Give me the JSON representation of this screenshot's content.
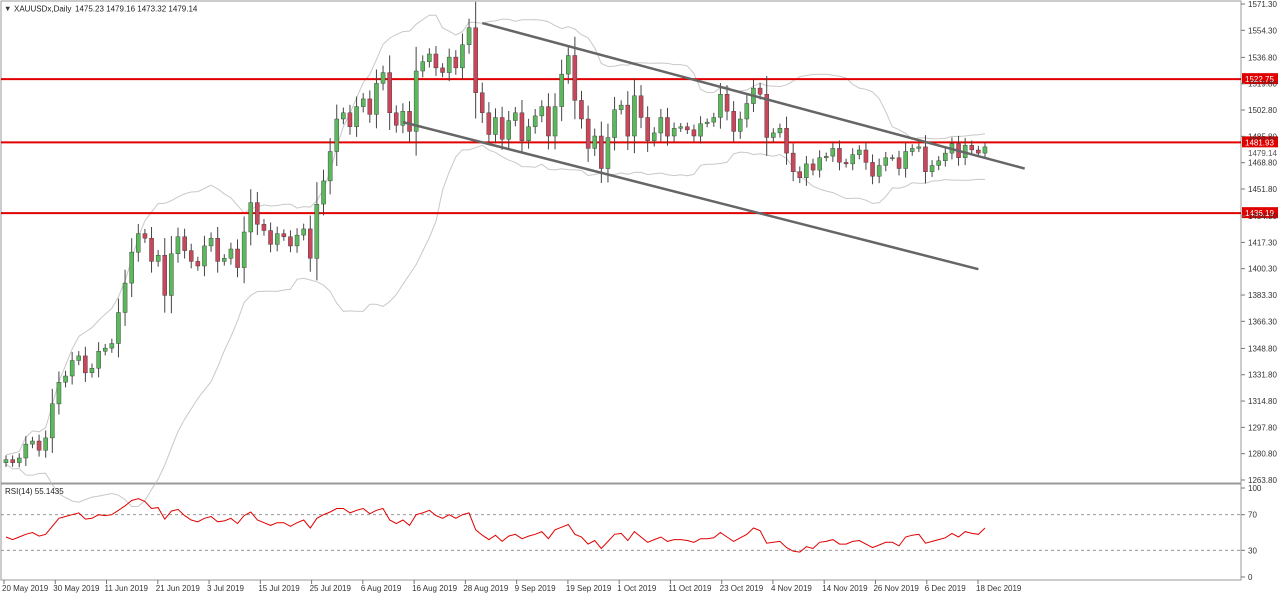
{
  "header": {
    "menu_icon": "triangle-down-icon",
    "symbol": "XAUUSDx,Daily",
    "ohlc": "1475.23 1479.16 1473.32 1479.14"
  },
  "rsi_label": "RSI(14) 55.1435",
  "colors": {
    "bull": "#5cb85c",
    "bear": "#c9475b",
    "level_line": "#e00000",
    "channel_line": "#666666",
    "band_line": "#c8c8c8",
    "rsi_line": "#e00000",
    "grid_border": "#999999"
  },
  "chart_data": [
    {
      "type": "candlestick",
      "symbol": "XAUUSDx",
      "timeframe": "Daily",
      "price_axis_ticks": [
        "1571.30",
        "1554.30",
        "1536.80",
        "1519.80",
        "1502.80",
        "1485.80",
        "1468.80",
        "1451.80",
        "1434.30",
        "1417.30",
        "1400.30",
        "1383.30",
        "1366.30",
        "1348.80",
        "1331.80",
        "1314.80",
        "1297.80",
        "1280.80",
        "1263.80"
      ],
      "ylim": [
        1263.8,
        1571.3
      ],
      "date_axis_ticks": [
        "20 May 2019",
        "30 May 2019",
        "11 Jun 2019",
        "21 Jun 2019",
        "3 Jul 2019",
        "15 Jul 2019",
        "25 Jul 2019",
        "6 Aug 2019",
        "16 Aug 2019",
        "28 Aug 2019",
        "9 Sep 2019",
        "19 Sep 2019",
        "1 Oct 2019",
        "11 Oct 2019",
        "23 Oct 2019",
        "4 Nov 2019",
        "14 Nov 2019",
        "26 Nov 2019",
        "6 Dec 2019",
        "18 Dec 2019"
      ],
      "horizontal_levels": [
        {
          "price": 1522.75,
          "label": "1522.75"
        },
        {
          "price": 1481.93,
          "label": "1481.93"
        },
        {
          "price": 1436.19,
          "label": "1436.19"
        }
      ],
      "current_price_label": "1479.14",
      "channel": {
        "upper": {
          "from": [
            72,
            1559
          ],
          "to": [
            154,
            1465
          ]
        },
        "lower": {
          "from": [
            60,
            1495
          ],
          "to": [
            147,
            1400
          ]
        }
      },
      "candles_close": [
        1277,
        1275,
        1278,
        1287,
        1289,
        1283,
        1291,
        1313,
        1327,
        1331,
        1341,
        1344,
        1333,
        1336,
        1347,
        1349,
        1352,
        1372,
        1391,
        1411,
        1423,
        1420,
        1405,
        1409,
        1383,
        1410,
        1421,
        1412,
        1405,
        1402,
        1415,
        1420,
        1405,
        1407,
        1413,
        1401,
        1424,
        1443,
        1429,
        1425,
        1416,
        1423,
        1421,
        1415,
        1422,
        1426,
        1407,
        1442,
        1457,
        1476,
        1497,
        1501,
        1492,
        1505,
        1510,
        1500,
        1520,
        1527,
        1501,
        1493,
        1502,
        1489,
        1528,
        1534,
        1539,
        1530,
        1527,
        1537,
        1530,
        1545,
        1556,
        1514,
        1501,
        1487,
        1498,
        1484,
        1496,
        1501,
        1483,
        1492,
        1499,
        1505,
        1486,
        1505,
        1526,
        1538,
        1509,
        1497,
        1478,
        1486,
        1465,
        1485,
        1503,
        1506,
        1486,
        1512,
        1498,
        1483,
        1488,
        1498,
        1486,
        1491,
        1492,
        1490,
        1486,
        1494,
        1495,
        1498,
        1513,
        1502,
        1489,
        1497,
        1507,
        1517,
        1513,
        1485,
        1488,
        1491,
        1475,
        1463,
        1459,
        1468,
        1464,
        1472,
        1473,
        1478,
        1469,
        1468,
        1474,
        1477,
        1469,
        1460,
        1467,
        1472,
        1472,
        1465,
        1476,
        1478,
        1479,
        1463,
        1467,
        1470,
        1475,
        1481,
        1472,
        1480,
        1477,
        1475,
        1479
      ]
    },
    {
      "type": "line",
      "indicator": "RSI(14)",
      "value": 55.1435,
      "axis_ticks": [
        "100",
        "70",
        "30",
        "0"
      ],
      "levels": [
        70,
        30
      ],
      "ylim": [
        0,
        100
      ],
      "values": [
        45,
        42,
        45,
        48,
        50,
        46,
        48,
        57,
        66,
        68,
        70,
        72,
        65,
        66,
        70,
        69,
        70,
        75,
        80,
        86,
        88,
        85,
        77,
        78,
        65,
        74,
        76,
        69,
        64,
        62,
        66,
        68,
        62,
        63,
        66,
        60,
        69,
        73,
        64,
        61,
        58,
        61,
        61,
        57,
        61,
        64,
        55,
        66,
        70,
        73,
        77,
        77,
        72,
        75,
        77,
        71,
        75,
        77,
        64,
        60,
        64,
        58,
        70,
        72,
        75,
        69,
        66,
        70,
        66,
        70,
        72,
        53,
        47,
        42,
        47,
        40,
        46,
        48,
        43,
        46,
        48,
        51,
        43,
        53,
        56,
        59,
        48,
        45,
        37,
        41,
        32,
        40,
        48,
        49,
        41,
        51,
        45,
        39,
        42,
        45,
        40,
        42,
        42,
        41,
        39,
        43,
        43,
        44,
        50,
        45,
        40,
        44,
        48,
        55,
        52,
        38,
        39,
        40,
        33,
        29,
        28,
        34,
        32,
        39,
        40,
        42,
        37,
        37,
        40,
        41,
        37,
        33,
        36,
        39,
        39,
        35,
        45,
        47,
        48,
        38,
        40,
        42,
        44,
        49,
        45,
        51,
        49,
        48,
        55
      ]
    }
  ]
}
